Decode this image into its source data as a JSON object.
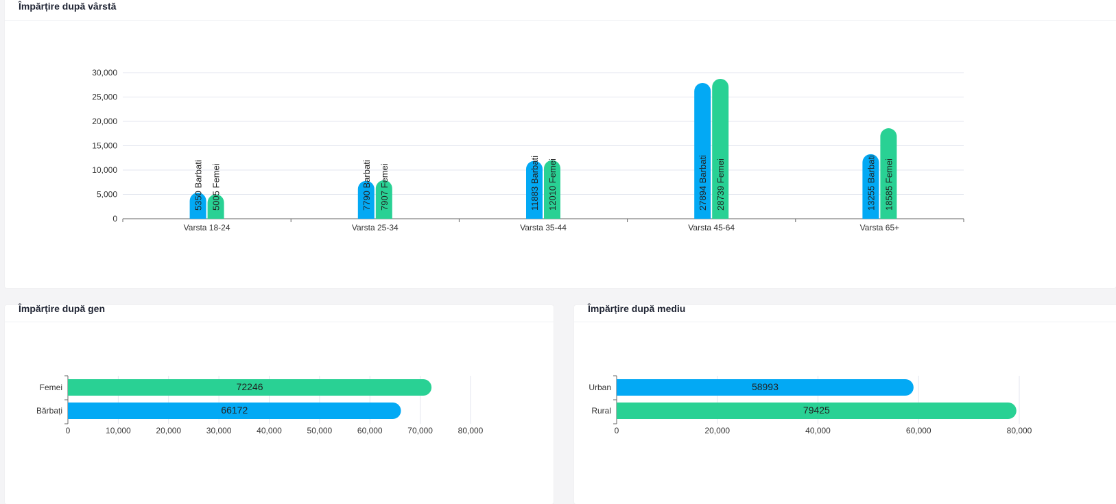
{
  "colors": {
    "barbati": "#03a9f4",
    "femei": "#29d194",
    "grid": "#e3e6ef",
    "axis": "#666666"
  },
  "age_card": {
    "title": "Împărțire după vârstă"
  },
  "gender_card": {
    "title": "Împărțire după gen"
  },
  "env_card": {
    "title": "Împărțire după mediu"
  },
  "chart_data": [
    {
      "type": "bar",
      "title": "Împărțire după vârstă",
      "categories": [
        "Varsta 18-24",
        "Varsta 25-34",
        "Varsta 35-44",
        "Varsta 45-64",
        "Varsta 65+"
      ],
      "series": [
        {
          "name": "Barbati",
          "values": [
            5350,
            7790,
            11883,
            27894,
            13255
          ],
          "labels": [
            "5350 Barbati",
            "7790 Barbati",
            "11883 Barbati",
            "27894 Barbati",
            "13255 Barbati"
          ]
        },
        {
          "name": "Femei",
          "values": [
            5005,
            7907,
            12010,
            28739,
            18585
          ],
          "labels": [
            "5005 Femei",
            "7907 Femei",
            "12010 Femei",
            "28739 Femei",
            "18585 Femei"
          ]
        }
      ],
      "ylim": [
        0,
        30000
      ],
      "yticks": [
        0,
        5000,
        10000,
        15000,
        20000,
        25000,
        30000
      ],
      "ytick_labels": [
        "0",
        "5,000",
        "10,000",
        "15,000",
        "20,000",
        "25,000",
        "30,000"
      ],
      "grid": true
    },
    {
      "type": "bar",
      "orientation": "horizontal",
      "title": "Împărțire după gen",
      "categories": [
        "Femei",
        "Bărbați"
      ],
      "values": [
        72246,
        66172
      ],
      "data_labels": [
        "72246",
        "66172"
      ],
      "bar_colors": [
        "#29d194",
        "#03a9f4"
      ],
      "xlim": [
        0,
        80000
      ],
      "xticks": [
        0,
        10000,
        20000,
        30000,
        40000,
        50000,
        60000,
        70000,
        80000
      ],
      "xtick_labels": [
        "0",
        "10,000",
        "20,000",
        "30,000",
        "40,000",
        "50,000",
        "60,000",
        "70,000",
        "80,000"
      ],
      "grid": true
    },
    {
      "type": "bar",
      "orientation": "horizontal",
      "title": "Împărțire după mediu",
      "categories": [
        "Urban",
        "Rural"
      ],
      "values": [
        58993,
        79425
      ],
      "data_labels": [
        "58993",
        "79425"
      ],
      "bar_colors": [
        "#03a9f4",
        "#29d194"
      ],
      "xlim": [
        0,
        80000
      ],
      "xticks": [
        0,
        20000,
        40000,
        60000,
        80000
      ],
      "xtick_labels": [
        "0",
        "20,000",
        "40,000",
        "60,000",
        "80,000"
      ],
      "grid": true
    }
  ]
}
